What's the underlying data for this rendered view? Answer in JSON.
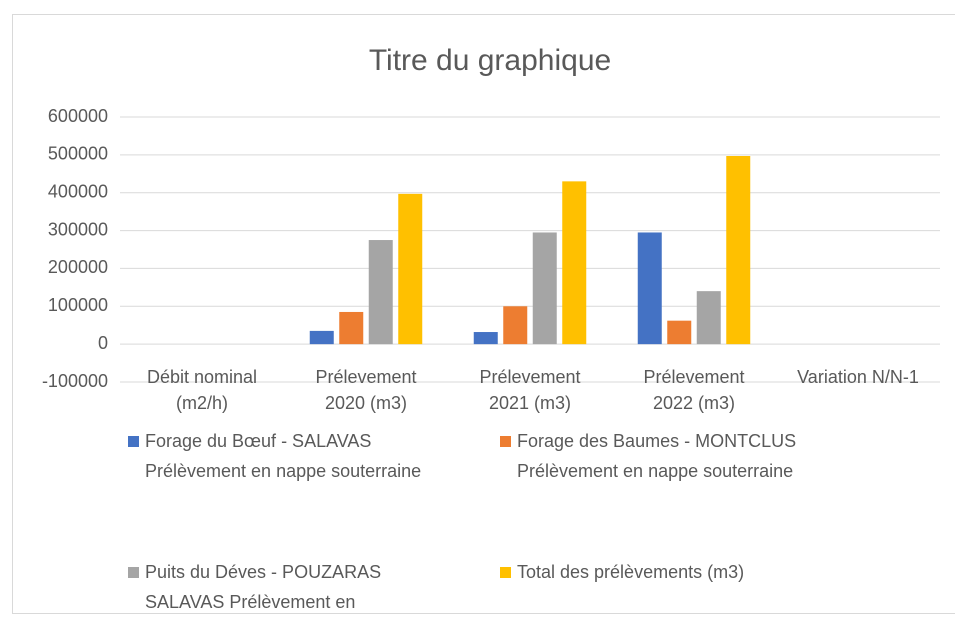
{
  "chart_data": {
    "type": "bar",
    "title": "Titre du graphique",
    "categories": [
      "Débit nominal (m2/h)",
      "Prélevement 2020 (m3)",
      "Prélevement 2021 (m3)",
      "Prélevement 2022 (m3)",
      "Variation N/N-1"
    ],
    "series": [
      {
        "name": "Forage du Bœuf - SALAVAS Prélèvement en nappe souterraine",
        "color": "#4472c4",
        "values": [
          null,
          35000,
          32000,
          295000,
          null
        ]
      },
      {
        "name": "Forage des Baumes - MONTCLUS Prélèvement en nappe souterraine",
        "color": "#ed7d31",
        "values": [
          null,
          85000,
          100000,
          62000,
          null
        ]
      },
      {
        "name": "Puits du Déves - POUZARAS SALAVAS Prélèvement en",
        "color": "#a5a5a5",
        "values": [
          null,
          275000,
          295000,
          140000,
          null
        ]
      },
      {
        "name": "Total des prélèvements (m3)",
        "color": "#ffc000",
        "values": [
          null,
          397000,
          430000,
          497000,
          null
        ]
      }
    ],
    "ylim": [
      -100000,
      600000
    ],
    "yticks": [
      -100000,
      0,
      100000,
      200000,
      300000,
      400000,
      500000,
      600000
    ],
    "grid": true,
    "legend": "bottom"
  }
}
